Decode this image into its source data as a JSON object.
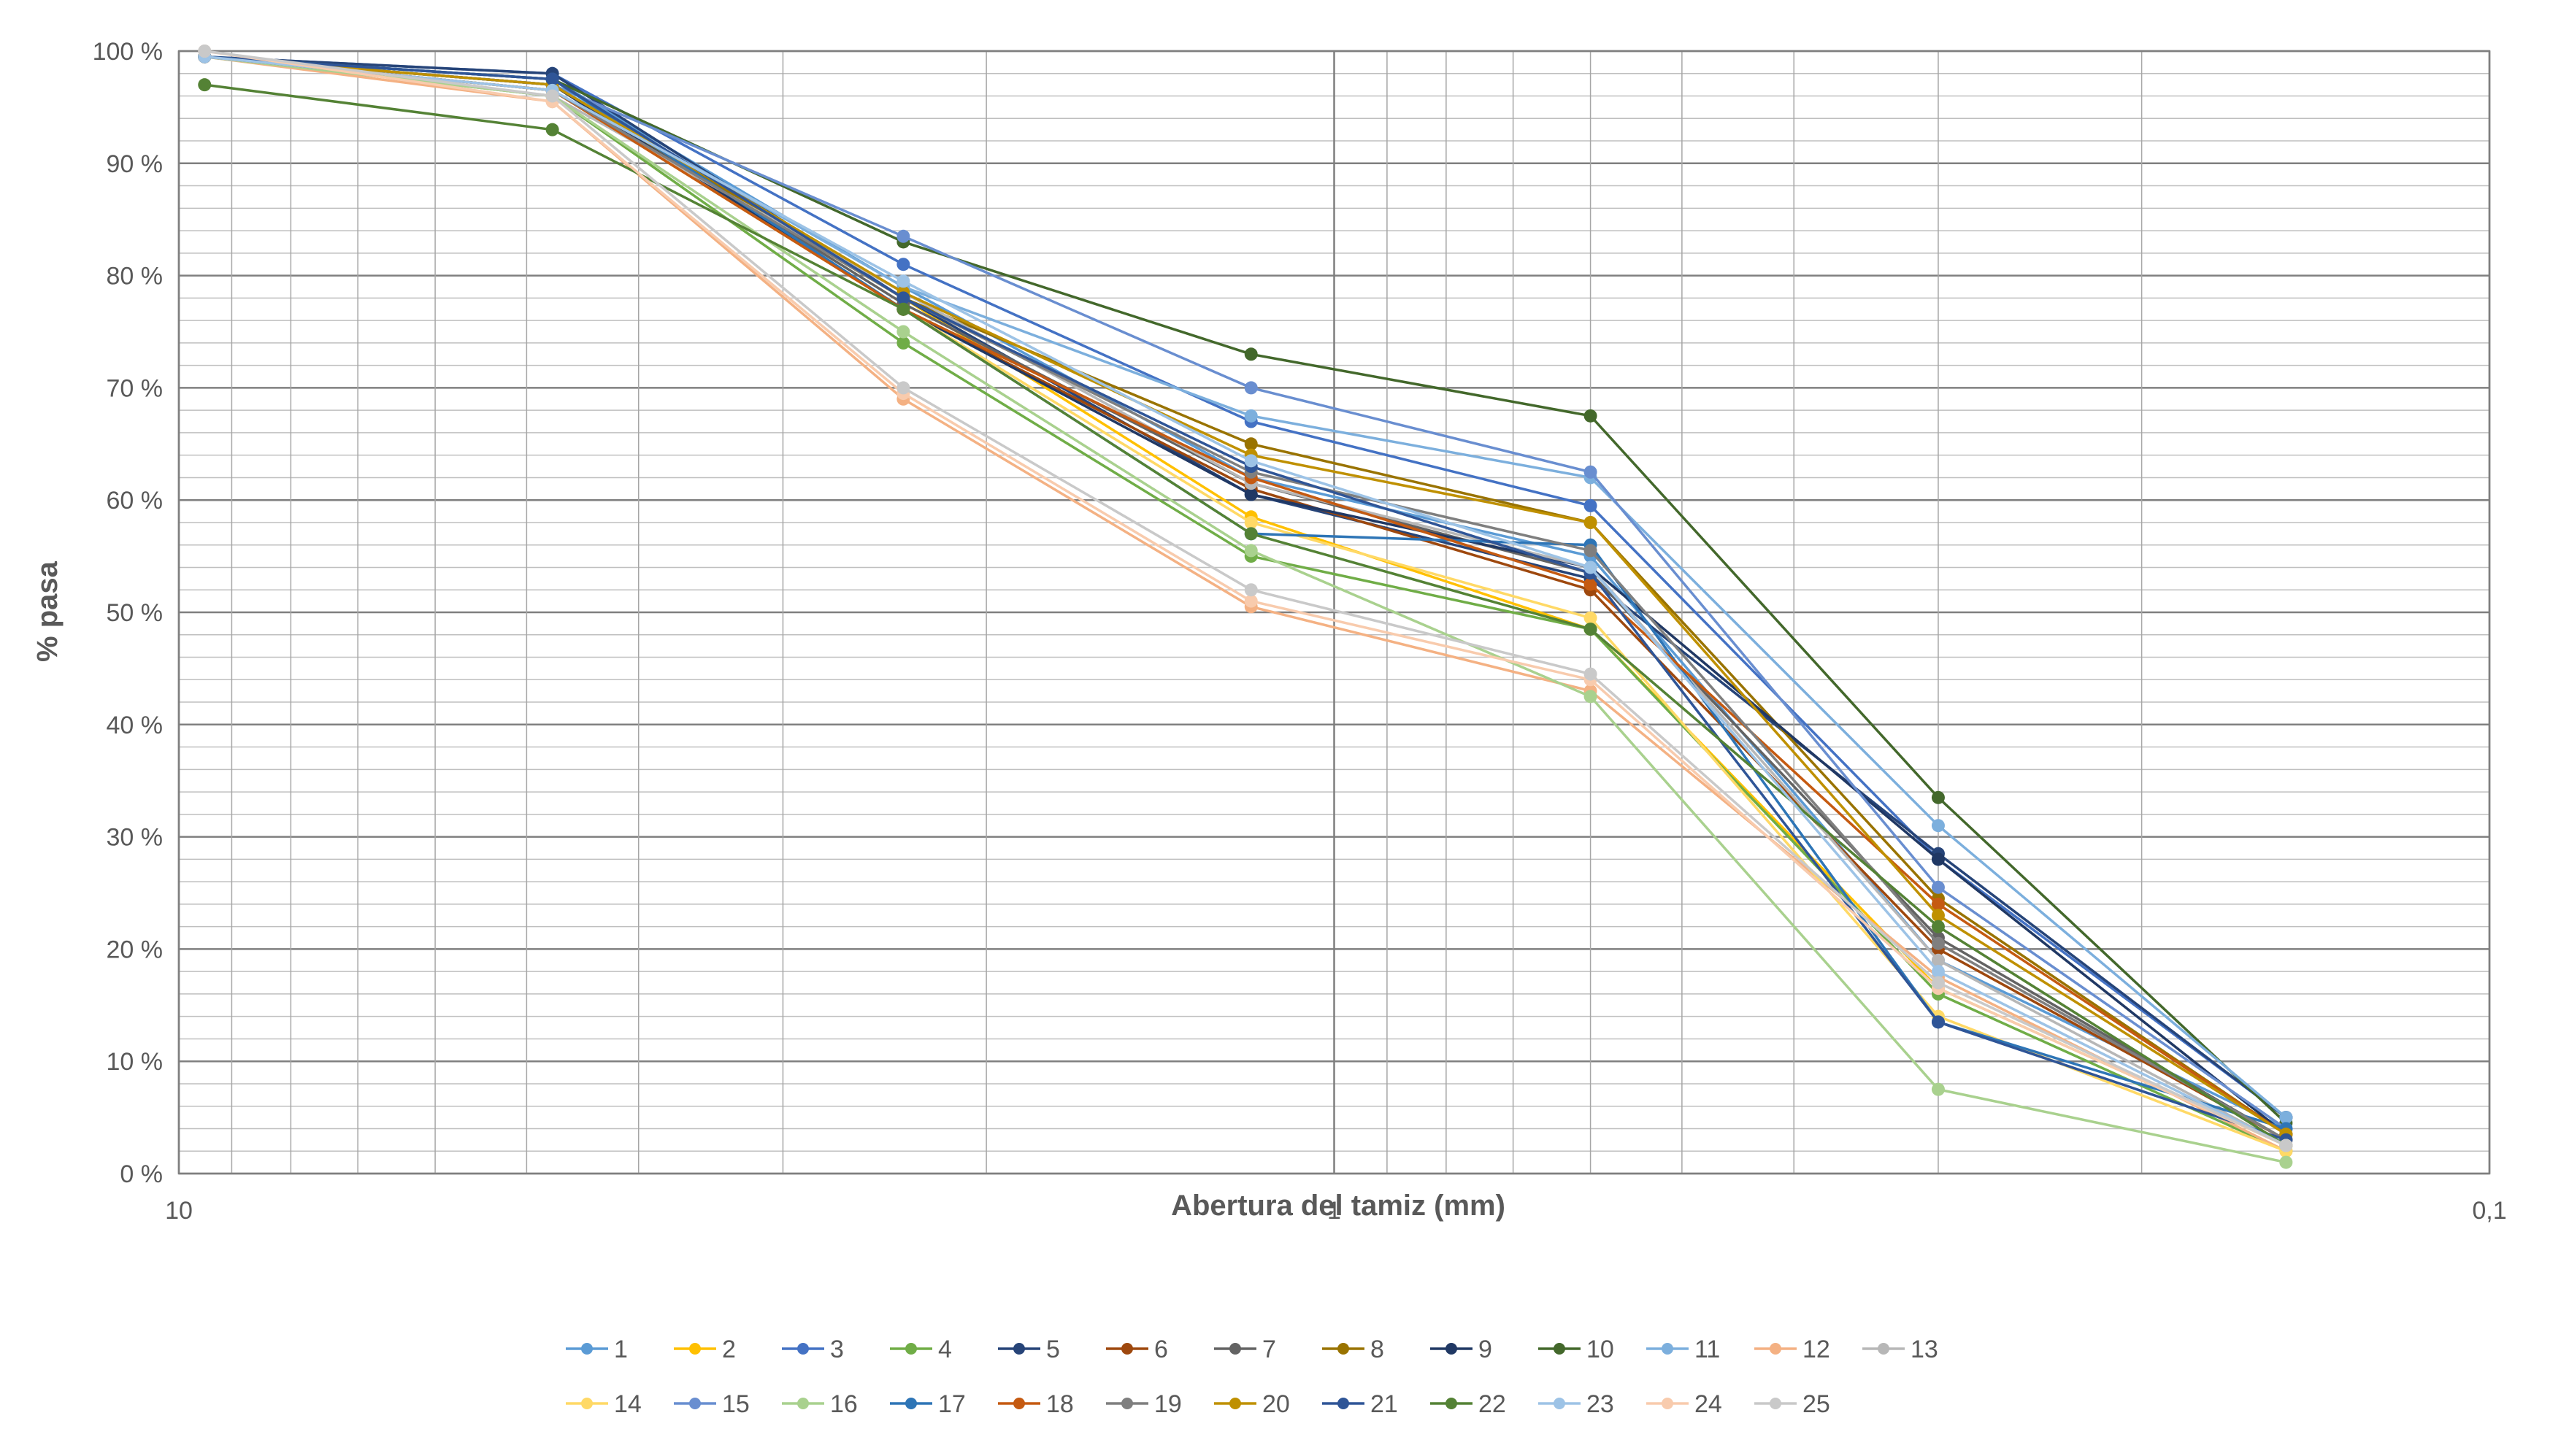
{
  "chart_data": {
    "type": "line",
    "x_scale": "log",
    "x_reversed": true,
    "xlabel": "Abertura del tamiz (mm)",
    "ylabel": "% pasa",
    "xlim": [
      10,
      0.1
    ],
    "ylim": [
      0,
      100
    ],
    "x_tick_labels": [
      {
        "value": 10,
        "label": "10"
      },
      {
        "value": 1,
        "label": "1"
      },
      {
        "value": 0.1,
        "label": "0,1"
      }
    ],
    "y_tick_labels": [
      {
        "value": 0,
        "label": "0 %"
      },
      {
        "value": 10,
        "label": "10 %"
      },
      {
        "value": 20,
        "label": "20 %"
      },
      {
        "value": 30,
        "label": "30 %"
      },
      {
        "value": 40,
        "label": "40 %"
      },
      {
        "value": 50,
        "label": "50 %"
      },
      {
        "value": 60,
        "label": "60 %"
      },
      {
        "value": 70,
        "label": "70 %"
      },
      {
        "value": 80,
        "label": "80 %"
      },
      {
        "value": 90,
        "label": "90 %"
      },
      {
        "value": 100,
        "label": "100 %"
      }
    ],
    "grid": true,
    "legend_position": "bottom",
    "x": [
      9.5,
      4.75,
      2.36,
      1.18,
      0.6,
      0.3,
      0.15
    ],
    "series": [
      {
        "name": "1",
        "color": "#5b9bd5",
        "values": [
          99.5,
          97.5,
          79.0,
          62.0,
          55.0,
          19.0,
          4.0
        ]
      },
      {
        "name": "2",
        "color": "#ffc000",
        "values": [
          99.5,
          96.5,
          78.0,
          58.5,
          48.5,
          16.5,
          2.5
        ]
      },
      {
        "name": "3",
        "color": "#4472c4",
        "values": [
          99.5,
          98.0,
          81.0,
          67.0,
          59.5,
          28.0,
          5.0
        ]
      },
      {
        "name": "4",
        "color": "#70ad47",
        "values": [
          99.5,
          96.0,
          74.0,
          55.0,
          48.5,
          16.0,
          2.0
        ]
      },
      {
        "name": "5",
        "color": "#264478",
        "values": [
          99.5,
          98.0,
          78.0,
          60.5,
          53.0,
          28.5,
          5.0
        ]
      },
      {
        "name": "6",
        "color": "#9e480e",
        "values": [
          99.5,
          96.5,
          77.0,
          61.0,
          52.0,
          20.0,
          3.0
        ]
      },
      {
        "name": "7",
        "color": "#636363",
        "values": [
          99.5,
          97.0,
          77.5,
          61.5,
          53.5,
          21.0,
          3.0
        ]
      },
      {
        "name": "8",
        "color": "#997300",
        "values": [
          99.5,
          97.0,
          78.0,
          65.0,
          58.0,
          24.5,
          3.5
        ]
      },
      {
        "name": "9",
        "color": "#203864",
        "values": [
          99.5,
          97.0,
          77.0,
          60.5,
          54.0,
          28.0,
          3.5
        ]
      },
      {
        "name": "10",
        "color": "#43682b",
        "values": [
          99.5,
          97.5,
          83.0,
          73.0,
          67.5,
          33.5,
          4.5
        ]
      },
      {
        "name": "11",
        "color": "#7cafdd",
        "values": [
          99.5,
          97.0,
          79.0,
          67.5,
          62.0,
          31.0,
          5.0
        ]
      },
      {
        "name": "12",
        "color": "#f4b183",
        "values": [
          99.5,
          95.5,
          69.0,
          50.5,
          43.0,
          17.5,
          2.0
        ]
      },
      {
        "name": "13",
        "color": "#b7b7b7",
        "values": [
          99.5,
          96.0,
          78.5,
          61.5,
          54.0,
          19.0,
          2.5
        ]
      },
      {
        "name": "14",
        "color": "#ffd966",
        "values": [
          99.5,
          96.5,
          77.0,
          58.0,
          49.5,
          14.0,
          2.0
        ]
      },
      {
        "name": "15",
        "color": "#698ed0",
        "values": [
          99.5,
          97.0,
          83.5,
          70.0,
          62.5,
          25.5,
          4.0
        ]
      },
      {
        "name": "16",
        "color": "#a9d18e",
        "values": [
          99.5,
          96.0,
          75.0,
          55.5,
          42.5,
          7.5,
          1.0
        ]
      },
      {
        "name": "17",
        "color": "#2e75b6",
        "values": [
          99.5,
          97.5,
          77.0,
          57.0,
          56.0,
          13.5,
          4.0
        ]
      },
      {
        "name": "18",
        "color": "#c55a11",
        "values": [
          99.5,
          96.5,
          77.0,
          62.0,
          52.5,
          24.0,
          3.5
        ]
      },
      {
        "name": "19",
        "color": "#7f7f7f",
        "values": [
          99.5,
          96.5,
          78.0,
          62.5,
          55.5,
          20.5,
          3.0
        ]
      },
      {
        "name": "20",
        "color": "#bf9000",
        "values": [
          99.5,
          97.0,
          78.5,
          64.0,
          58.0,
          23.0,
          3.5
        ]
      },
      {
        "name": "21",
        "color": "#2f5597",
        "values": [
          99.5,
          97.5,
          78.0,
          63.0,
          53.5,
          13.5,
          3.0
        ]
      },
      {
        "name": "22",
        "color": "#548235",
        "values": [
          97.0,
          93.0,
          77.0,
          57.0,
          48.5,
          22.0,
          2.5
        ]
      },
      {
        "name": "23",
        "color": "#9dc3e6",
        "values": [
          99.5,
          96.5,
          79.5,
          63.5,
          54.0,
          18.0,
          2.5
        ]
      },
      {
        "name": "24",
        "color": "#f8cbad",
        "values": [
          100.0,
          95.5,
          69.5,
          51.0,
          44.0,
          16.5,
          2.5
        ]
      },
      {
        "name": "25",
        "color": "#c9c9c9",
        "values": [
          100.0,
          96.0,
          70.0,
          52.0,
          44.5,
          17.0,
          2.5
        ]
      }
    ]
  }
}
